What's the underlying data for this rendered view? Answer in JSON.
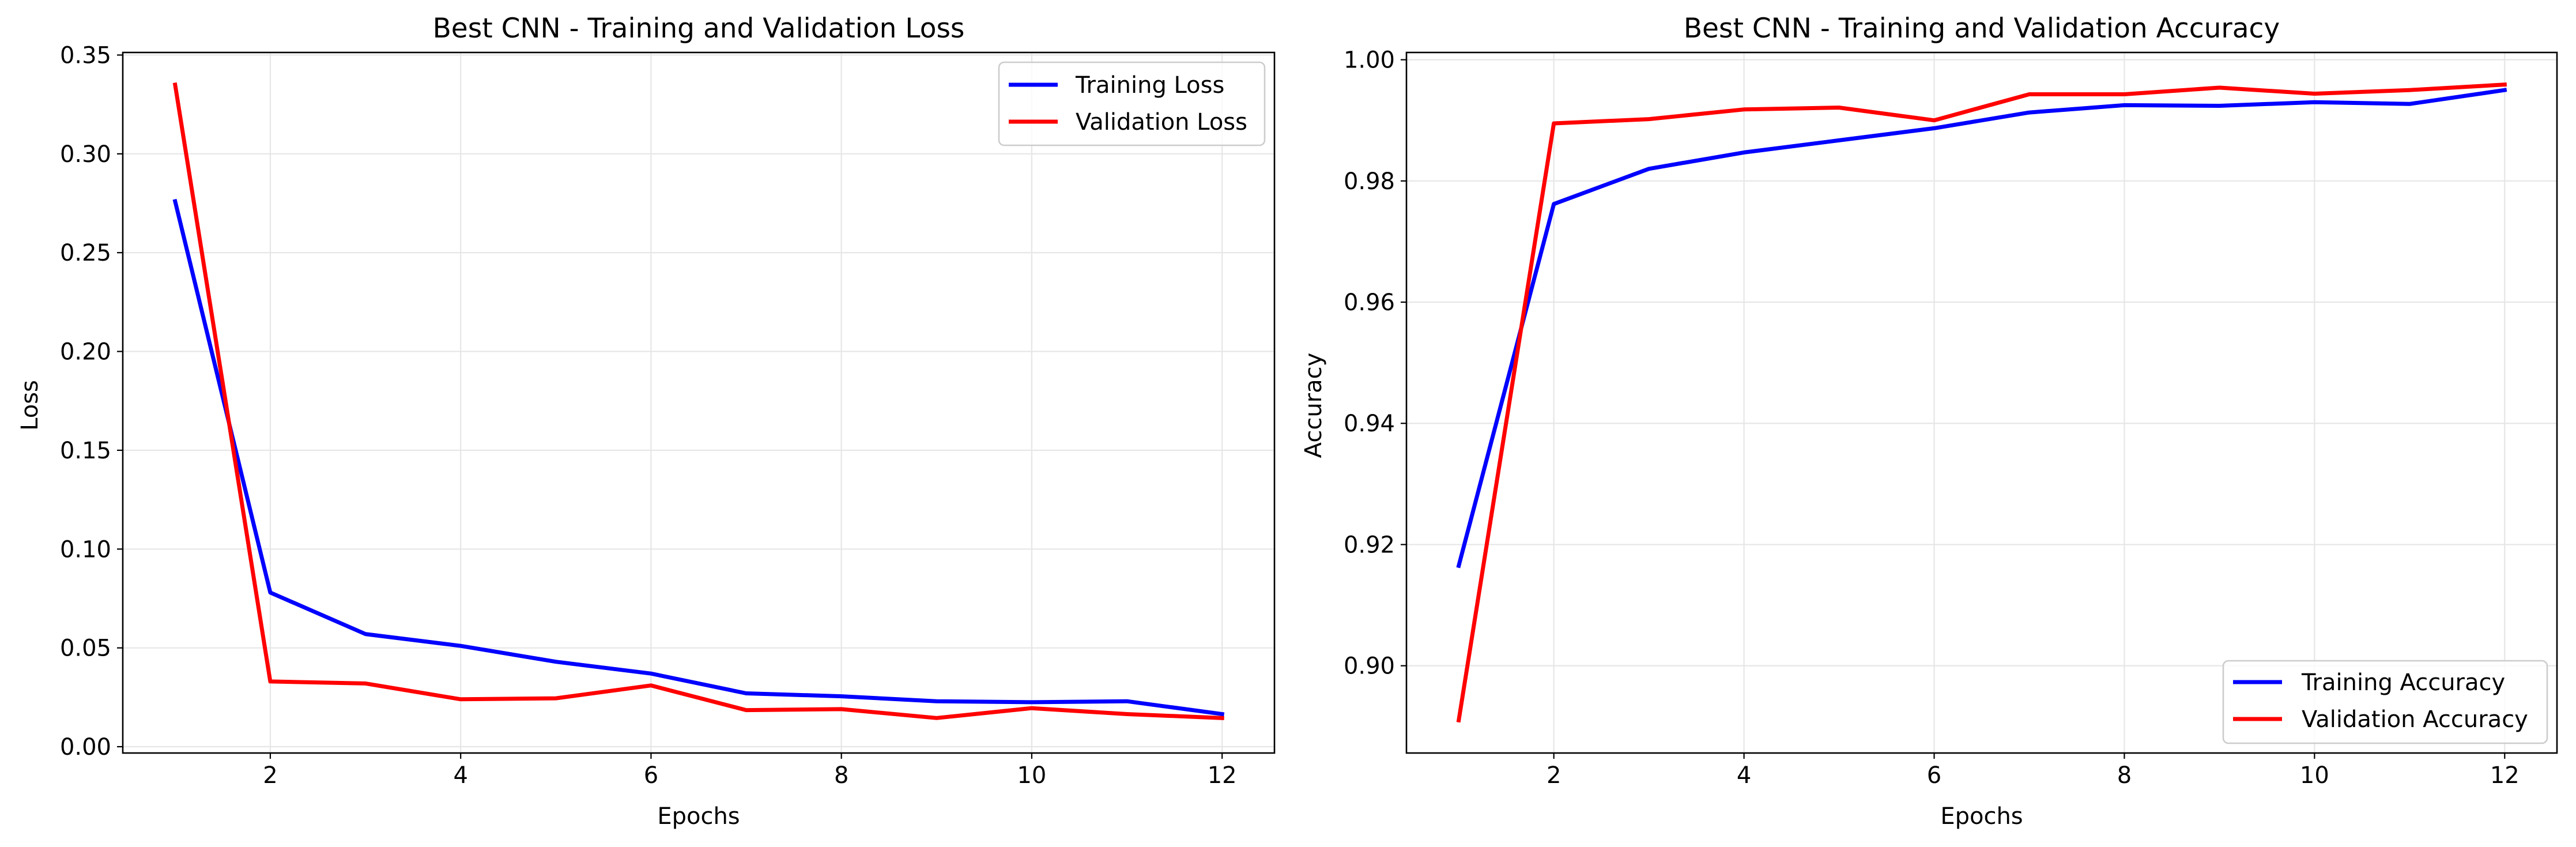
{
  "chart_data": [
    {
      "type": "line",
      "title": "Best CNN - Training and Validation Loss",
      "xlabel": "Epochs",
      "ylabel": "Loss",
      "xlim": [
        0.45,
        12.55
      ],
      "ylim": [
        -0.0032,
        0.3513
      ],
      "xticks": [
        2,
        4,
        6,
        8,
        10,
        12
      ],
      "yticks": [
        0.0,
        0.05,
        0.1,
        0.15,
        0.2,
        0.25,
        0.3,
        0.35
      ],
      "ytick_labels": [
        "0.00",
        "0.05",
        "0.10",
        "0.15",
        "0.20",
        "0.25",
        "0.30",
        "0.35"
      ],
      "grid": true,
      "legend_position": "upper right",
      "x": [
        1,
        2,
        3,
        4,
        5,
        6,
        7,
        8,
        9,
        10,
        11,
        12
      ],
      "series": [
        {
          "name": "Training Loss",
          "color": "#0000ff",
          "values": [
            0.276,
            0.078,
            0.057,
            0.051,
            0.043,
            0.037,
            0.027,
            0.0255,
            0.023,
            0.0225,
            0.023,
            0.0165
          ]
        },
        {
          "name": "Validation Loss",
          "color": "#ff0000",
          "values": [
            0.335,
            0.033,
            0.032,
            0.024,
            0.0245,
            0.031,
            0.0185,
            0.019,
            0.0145,
            0.0195,
            0.0165,
            0.0145
          ]
        }
      ]
    },
    {
      "type": "line",
      "title": "Best CNN - Training and Validation Accuracy",
      "xlabel": "Epochs",
      "ylabel": "Accuracy",
      "xlim": [
        0.45,
        12.55
      ],
      "ylim": [
        0.8856,
        1.0012
      ],
      "xticks": [
        2,
        4,
        6,
        8,
        10,
        12
      ],
      "yticks": [
        0.9,
        0.92,
        0.94,
        0.96,
        0.98,
        1.0
      ],
      "ytick_labels": [
        "0.90",
        "0.92",
        "0.94",
        "0.96",
        "0.98",
        "1.00"
      ],
      "grid": true,
      "legend_position": "lower right",
      "x": [
        1,
        2,
        3,
        4,
        5,
        6,
        7,
        8,
        9,
        10,
        11,
        12
      ],
      "series": [
        {
          "name": "Training Accuracy",
          "color": "#0000ff",
          "values": [
            0.9165,
            0.9762,
            0.982,
            0.9847,
            0.9867,
            0.9887,
            0.9913,
            0.9925,
            0.9924,
            0.993,
            0.9927,
            0.995
          ]
        },
        {
          "name": "Validation Accuracy",
          "color": "#ff0000",
          "values": [
            0.891,
            0.9895,
            0.9902,
            0.9918,
            0.9921,
            0.99,
            0.9943,
            0.9943,
            0.9954,
            0.9944,
            0.995,
            0.9959
          ]
        }
      ]
    }
  ]
}
